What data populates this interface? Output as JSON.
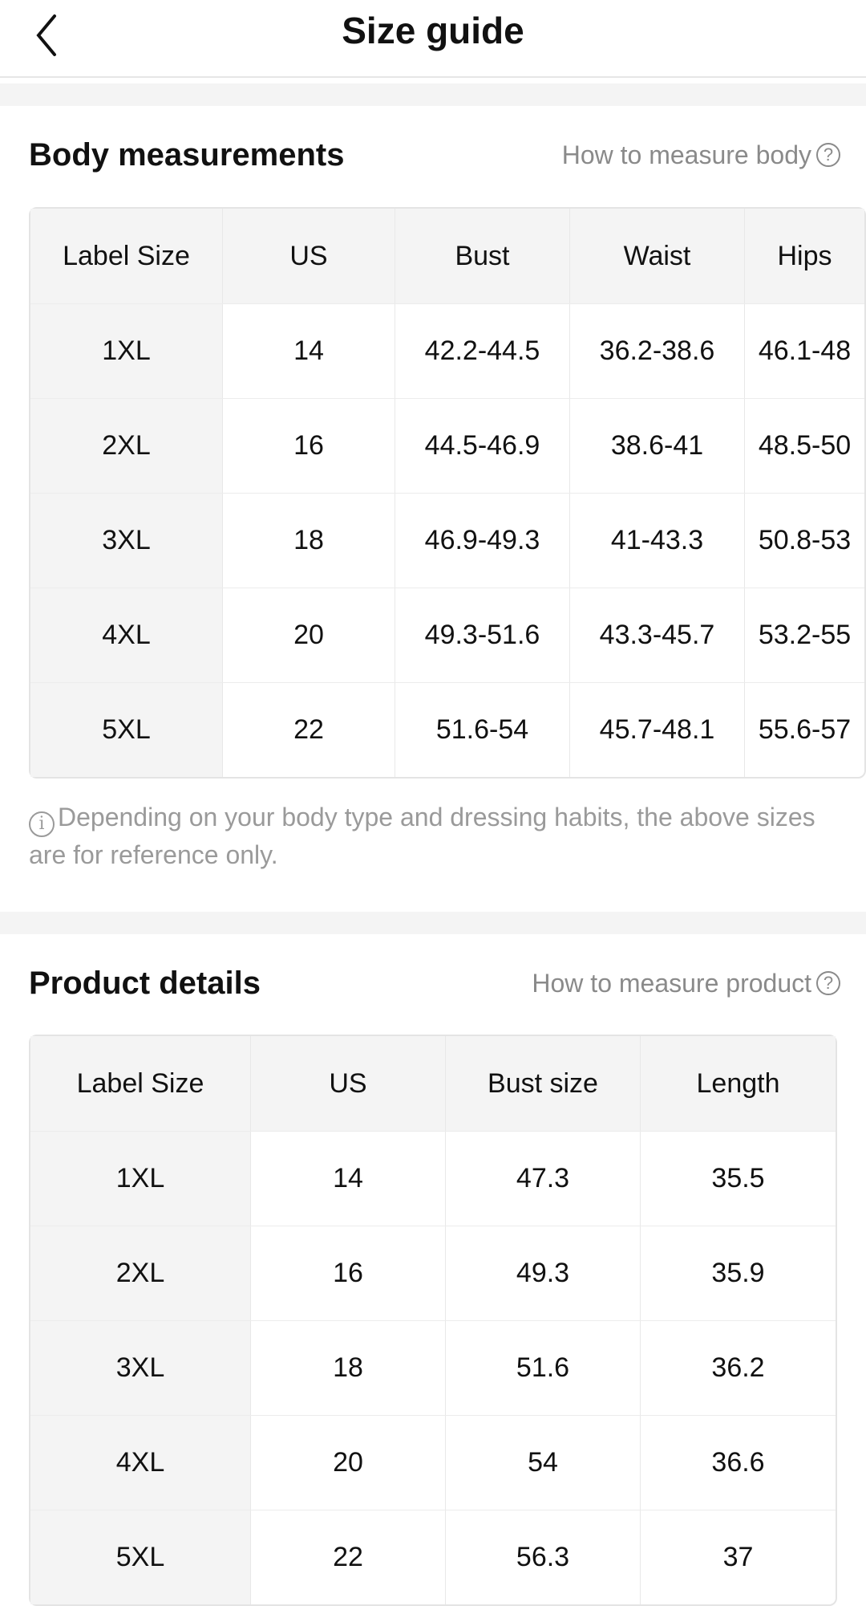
{
  "header": {
    "title": "Size guide",
    "back_icon": "chevron-left-icon"
  },
  "body": {
    "title": "Body measurements",
    "how_to": "How to measure body",
    "columns": [
      "Label Size",
      "US",
      "Bust",
      "Waist",
      "Hips"
    ],
    "rows": [
      [
        "1XL",
        "14",
        "42.2-44.5",
        "36.2-38.6",
        "46.1-48"
      ],
      [
        "2XL",
        "16",
        "44.5-46.9",
        "38.6-41",
        "48.5-50"
      ],
      [
        "3XL",
        "18",
        "46.9-49.3",
        "41-43.3",
        "50.8-53"
      ],
      [
        "4XL",
        "20",
        "49.3-51.6",
        "43.3-45.7",
        "53.2-55"
      ],
      [
        "5XL",
        "22",
        "51.6-54",
        "45.7-48.1",
        "55.6-57"
      ]
    ],
    "note": "Depending on your body type and dressing habits, the above sizes are for reference only."
  },
  "product": {
    "title": "Product details",
    "how_to": "How to measure product",
    "columns": [
      "Label Size",
      "US",
      "Bust size",
      "Length"
    ],
    "rows": [
      [
        "1XL",
        "14",
        "47.3",
        "35.5"
      ],
      [
        "2XL",
        "16",
        "49.3",
        "35.9"
      ],
      [
        "3XL",
        "18",
        "51.6",
        "36.2"
      ],
      [
        "4XL",
        "20",
        "54",
        "36.6"
      ],
      [
        "5XL",
        "22",
        "56.3",
        "37"
      ]
    ]
  }
}
